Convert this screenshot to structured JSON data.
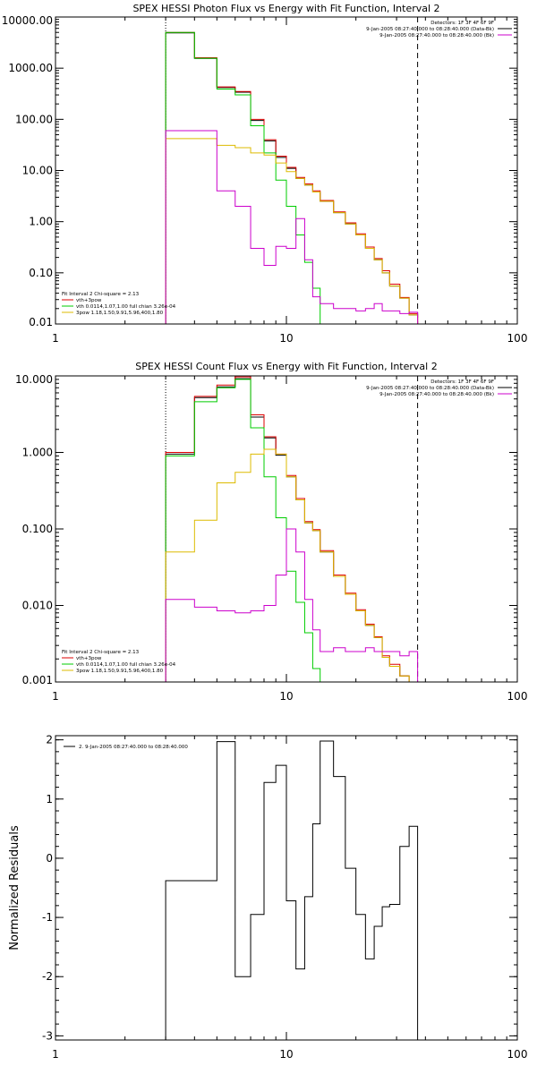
{
  "chart_data": [
    {
      "id": "photon",
      "type": "line",
      "title": "SPEX HESSI Photon Flux vs Energy with Fit Function, Interval 2",
      "xlabel": "",
      "ylabel": "",
      "xscale": "log",
      "yscale": "log",
      "xlim": [
        1,
        100
      ],
      "ylim": [
        0.01,
        10000
      ],
      "x_ticks": [
        1,
        10,
        100
      ],
      "x_tick_labels": [
        "1",
        "10",
        "100"
      ],
      "y_ticks": [
        0.01,
        0.1,
        1,
        10,
        100,
        1000,
        10000
      ],
      "y_tick_labels": [
        "0.01",
        "0.10",
        "1.00",
        "10.00",
        "100.00",
        "1000.00",
        "10000.00"
      ],
      "vlines": [
        {
          "x": 3,
          "style": "dotted",
          "color": "#000000"
        },
        {
          "x": 37,
          "style": "dashed",
          "color": "#000000"
        }
      ],
      "legend_top_right": [
        {
          "text": "Detectors: 1F 3F 4F 6F 9F",
          "color": "#000000",
          "swatch": false
        },
        {
          "text": "9-Jan-2005 08:27:40.000 to 08:28:40.000 (Data-Bk)",
          "color": "#000000",
          "swatch": true
        },
        {
          "text": "9-Jan-2005 08:27:40.000 to 08:28:40.000 (Bk)",
          "color": "#cc00cc",
          "swatch": true
        }
      ],
      "legend_bottom_left": [
        {
          "text": "Fit Interval 2   Chi-square = 2.13",
          "color": "#000000",
          "swatch": false
        },
        {
          "text": "vth+3pow",
          "color": "#dd0000",
          "swatch": true
        },
        {
          "text": "vth 0.0114,1.07,1.00  full chian 3.26e-04",
          "color": "#00cc00",
          "swatch": true
        },
        {
          "text": "3pow 1.18,1.50,9.91,5.96,400,1.80",
          "color": "#ddbb00",
          "swatch": true
        }
      ],
      "edges": [
        3,
        4,
        5,
        6,
        7,
        8,
        9,
        10,
        11,
        12,
        13,
        14,
        16,
        18,
        20,
        22,
        24,
        26,
        28,
        31,
        34,
        37
      ],
      "series": [
        {
          "name": "Data-Bk",
          "color": "#000000",
          "values": [
            4900,
            1550,
            420,
            340,
            95,
            38,
            18,
            11,
            7,
            5.2,
            3.8,
            2.5,
            1.5,
            0.9,
            0.55,
            0.3,
            0.18,
            0.1,
            0.055,
            0.032,
            0.015
          ]
        },
        {
          "name": "vth+3pow",
          "color": "#dd0000",
          "values": [
            5000,
            1600,
            430,
            350,
            100,
            40,
            19,
            11.5,
            7.3,
            5.5,
            4,
            2.6,
            1.55,
            0.95,
            0.58,
            0.32,
            0.19,
            0.11,
            0.06,
            0.033,
            0.016
          ]
        },
        {
          "name": "vth",
          "color": "#00cc00",
          "values": [
            5000,
            1560,
            390,
            300,
            75,
            22,
            6.5,
            2,
            0.55,
            0.16,
            0.05,
            0.01,
            0.003,
            null,
            null,
            null,
            null,
            null,
            null,
            null,
            null
          ]
        },
        {
          "name": "3pow",
          "color": "#ddbb00",
          "values": [
            42,
            42,
            31,
            28,
            22,
            20,
            14,
            9.5,
            7,
            5.2,
            3.8,
            2.5,
            1.5,
            0.9,
            0.55,
            0.3,
            0.18,
            0.1,
            0.055,
            0.032,
            0.015
          ]
        },
        {
          "name": "Bk",
          "color": "#cc00cc",
          "values": [
            60,
            60,
            4,
            2,
            0.3,
            0.14,
            0.33,
            0.3,
            1.15,
            0.18,
            0.034,
            0.025,
            0.02,
            0.02,
            0.018,
            0.02,
            0.025,
            0.018,
            0.018,
            0.016,
            0.017
          ]
        }
      ]
    },
    {
      "id": "count",
      "type": "line",
      "title": "SPEX HESSI Count Flux vs Energy with Fit Function, Interval 2",
      "xlabel": "",
      "ylabel": "",
      "xscale": "log",
      "yscale": "log",
      "xlim": [
        1,
        100
      ],
      "ylim": [
        0.001,
        10
      ],
      "x_ticks": [
        1,
        10,
        100
      ],
      "x_tick_labels": [
        "1",
        "10",
        "100"
      ],
      "y_ticks": [
        0.001,
        0.01,
        0.1,
        1,
        10
      ],
      "y_tick_labels": [
        "0.001",
        "0.010",
        "0.100",
        "1.000",
        "10.000"
      ],
      "vlines": [
        {
          "x": 3,
          "style": "dotted",
          "color": "#000000"
        },
        {
          "x": 37,
          "style": "dashed",
          "color": "#000000"
        }
      ],
      "legend_top_right": [
        {
          "text": "Detectors: 1F 3F 4F 6F 9F",
          "color": "#000000",
          "swatch": false
        },
        {
          "text": "9-Jan-2005 08:27:40.000 to 08:28:40.000 (Data-Bk)",
          "color": "#000000",
          "swatch": true
        },
        {
          "text": "9-Jan-2005 08:27:40.000 to 08:28:40.000 (Bk)",
          "color": "#cc00cc",
          "swatch": true
        }
      ],
      "legend_bottom_left": [
        {
          "text": "Fit Interval 2   Chi-square = 2.13",
          "color": "#000000",
          "swatch": false
        },
        {
          "text": "vth+3pow",
          "color": "#dd0000",
          "swatch": true
        },
        {
          "text": "vth 0.0114,1.07,1.00  full chian 3.26e-04",
          "color": "#00cc00",
          "swatch": true
        },
        {
          "text": "3pow 1.18,1.50,9.91,5.96,400,1.80",
          "color": "#ddbb00",
          "swatch": true
        }
      ],
      "edges": [
        3,
        4,
        5,
        6,
        7,
        8,
        9,
        10,
        11,
        12,
        13,
        14,
        16,
        18,
        20,
        22,
        24,
        26,
        28,
        31,
        34,
        37
      ],
      "series": [
        {
          "name": "Data-Bk",
          "color": "#000000",
          "values": [
            0.95,
            5.2,
            7.2,
            9.2,
            2.9,
            1.55,
            0.92,
            0.48,
            0.24,
            0.12,
            0.095,
            0.05,
            0.024,
            0.014,
            0.0085,
            0.0055,
            0.0038,
            0.0021,
            0.0016,
            0.0012,
            0.0009
          ]
        },
        {
          "name": "vth+3pow",
          "color": "#dd0000",
          "values": [
            1.0,
            5.4,
            7.6,
            9.7,
            3.1,
            1.6,
            0.95,
            0.5,
            0.25,
            0.125,
            0.098,
            0.052,
            0.025,
            0.0145,
            0.0088,
            0.0057,
            0.0039,
            0.0022,
            0.0017,
            0.0012,
            0.0009
          ]
        },
        {
          "name": "vth",
          "color": "#00cc00",
          "values": [
            0.9,
            4.6,
            7.0,
            9.0,
            2.1,
            0.48,
            0.14,
            0.028,
            0.011,
            0.0044,
            0.0015,
            0.0006,
            null,
            null,
            null,
            null,
            null,
            null,
            null,
            null,
            null
          ]
        },
        {
          "name": "3pow",
          "color": "#ddbb00",
          "values": [
            0.05,
            0.13,
            0.4,
            0.55,
            0.95,
            1.1,
            0.95,
            0.48,
            0.24,
            0.12,
            0.095,
            0.05,
            0.024,
            0.014,
            0.0085,
            0.0055,
            0.0038,
            0.0021,
            0.0016,
            0.0012,
            0.0009
          ]
        },
        {
          "name": "Bk",
          "color": "#cc00cc",
          "values": [
            0.012,
            0.0095,
            0.0085,
            0.008,
            0.0085,
            0.01,
            0.025,
            0.1,
            0.05,
            0.012,
            0.0048,
            0.0025,
            0.0028,
            0.0025,
            0.0025,
            0.0028,
            0.0025,
            0.0025,
            0.0025,
            0.0022,
            0.0025
          ]
        }
      ]
    },
    {
      "id": "residuals",
      "type": "line",
      "title": "",
      "xlabel": "",
      "ylabel": "Normalized Residuals",
      "xscale": "log",
      "yscale": "linear",
      "xlim": [
        1,
        100
      ],
      "ylim": [
        -3.07,
        2.07
      ],
      "x_ticks": [
        1,
        10,
        100
      ],
      "x_tick_labels": [
        "1",
        "10",
        "100"
      ],
      "y_ticks": [
        -3,
        -2,
        -1,
        0,
        1,
        2
      ],
      "y_tick_labels": [
        "-3",
        "-2",
        "-1",
        "0",
        "1",
        "2"
      ],
      "vlines": [],
      "legend_top_right": [],
      "legend_bottom_left": [],
      "legend_top_left": [
        {
          "text": "2.  9-Jan-2005 08:27:40.000 to 08:28:40.000",
          "color": "#000000",
          "swatch": true
        }
      ],
      "edges": [
        3,
        4,
        5,
        6,
        7,
        8,
        9,
        10,
        11,
        12,
        13,
        14,
        16,
        18,
        20,
        22,
        24,
        26,
        28,
        31,
        34,
        37
      ],
      "series": [
        {
          "name": "residuals",
          "color": "#000000",
          "values": [
            -0.38,
            -0.38,
            1.97,
            -2.0,
            -0.95,
            1.28,
            1.57,
            -0.72,
            -1.87,
            -0.65,
            0.58,
            1.98,
            1.38,
            -0.17,
            -0.95,
            -1.7,
            -1.15,
            -0.82,
            -0.78,
            0.2,
            0.54
          ]
        }
      ]
    }
  ]
}
